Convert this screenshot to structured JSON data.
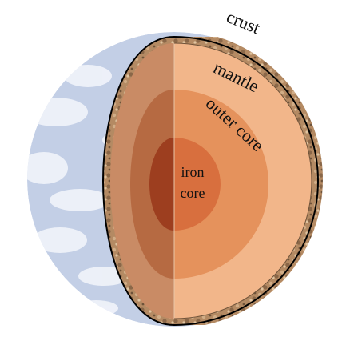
{
  "labels": {
    "crust": "crust",
    "mantle": "mantle",
    "outer_core": "outer core",
    "iron_core_line1": "iron",
    "iron_core_line2": "core"
  },
  "colors": {
    "background": "#ffffff",
    "earth_surface": "#c3cfe6",
    "clouds": "#f4f6fb",
    "crust": "#b48a63",
    "crust_shadow": "#8a6748",
    "mantle": "#f2b68a",
    "mantle_shaded": "#c98b65",
    "outer_core": "#e5925c",
    "outer_core_shaded": "#b66a42",
    "inner_core": "#d86f3e",
    "inner_core_shaded": "#9d3e1f",
    "outline": "#000000"
  }
}
